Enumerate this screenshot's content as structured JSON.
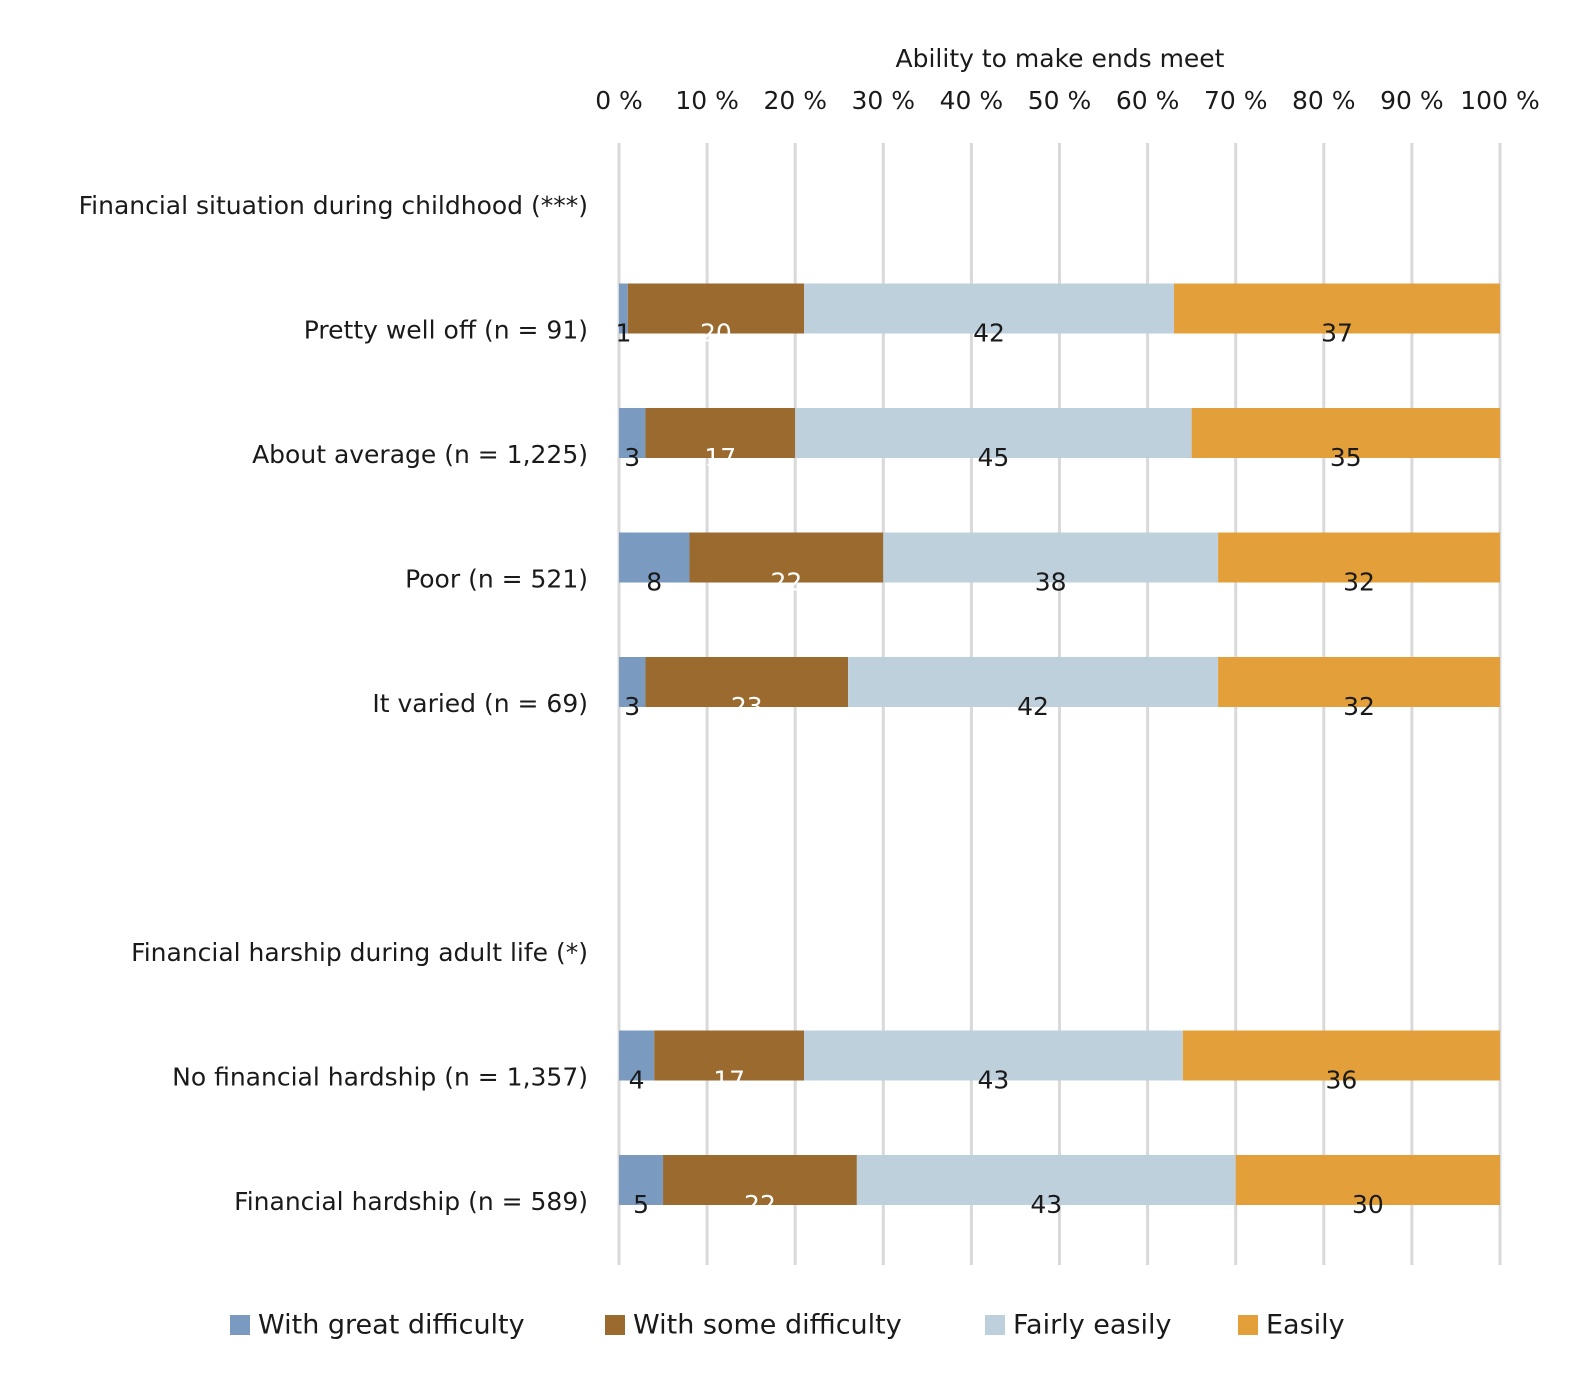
{
  "chart_data": {
    "type": "stacked-bar-horizontal",
    "x_label": "Ability to make ends meet",
    "categories": [
      "Financial situation during childhood (***)",
      "Pretty well off (n = 91)",
      "About average (n = 1,225)",
      "Poor (n = 521)",
      "It varied (n = 69)",
      null,
      "Financial harship during adult life (*)",
      "No financial hardship (n = 1,357)",
      "Financial hardship (n = 589)"
    ],
    "series": [
      {
        "name": "With great difficulty",
        "color": "#7a9bbf",
        "label_color": "#1a1a1a",
        "values": [
          null,
          1,
          3,
          8,
          3,
          null,
          null,
          4,
          5
        ]
      },
      {
        "name": "With some difficulty",
        "color": "#9b6a2f",
        "label_color": "#ffffff",
        "values": [
          null,
          20,
          17,
          22,
          23,
          null,
          null,
          17,
          22
        ]
      },
      {
        "name": "Fairly easily",
        "color": "#bfd0dd",
        "label_color": "#1a1a1a",
        "values": [
          null,
          42,
          45,
          38,
          42,
          null,
          null,
          43,
          43
        ]
      },
      {
        "name": "Easily",
        "color": "#e3a03a",
        "label_color": "#1a1a1a",
        "values": [
          null,
          37,
          35,
          32,
          32,
          null,
          null,
          36,
          30
        ]
      }
    ],
    "xlim": [
      0,
      100
    ],
    "xticks": [
      {
        "value": 0,
        "label": "0 %"
      },
      {
        "value": 10,
        "label": "10 %"
      },
      {
        "value": 20,
        "label": "20 %"
      },
      {
        "value": 30,
        "label": "30 %"
      },
      {
        "value": 40,
        "label": "40 %"
      },
      {
        "value": 50,
        "label": "50 %"
      },
      {
        "value": 60,
        "label": "60 %"
      },
      {
        "value": 70,
        "label": "70 %"
      },
      {
        "value": 80,
        "label": "80 %"
      },
      {
        "value": 90,
        "label": "90 %"
      },
      {
        "value": 100,
        "label": "100 %"
      }
    ],
    "grid": true,
    "legend": "bottom"
  }
}
